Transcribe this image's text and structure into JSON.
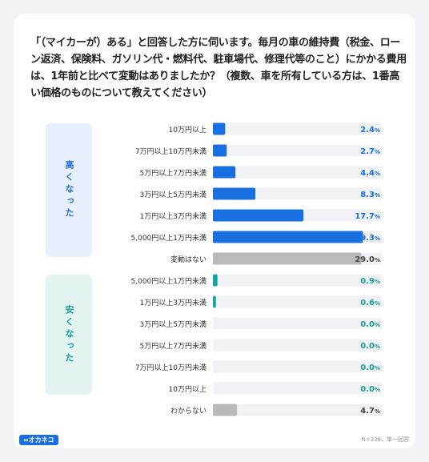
{
  "title": "「（マイカーが）ある」と回答した方に伺います。毎月の車の維持費（税金、ローン返済、保険料、ガソリン代・燃料代、駐車場代、修理代等のこと）にかかる費用は、1年前と比べて変動はありましたか？（複数、車を所有している方は、1番高い価格のものについて教えてください）",
  "groups": {
    "up": "高くなった",
    "down": "安くなった"
  },
  "logo": "∞オカネコ",
  "note": "N=338、単一回答",
  "colors": {
    "up": "#1a6fe0",
    "neutral": "#b9b9b9",
    "down": "#1aa5a0",
    "track": "#f1f2f5"
  },
  "chart_data": {
    "type": "bar",
    "orientation": "horizontal",
    "unit": "%",
    "xlim": [
      0,
      33
    ],
    "categories": [
      "10万円以上",
      "7万円以上10万円未満",
      "5万円以上7万円未満",
      "3万円以上5万円未満",
      "1万円以上3万円未満",
      "5,000円以上1万円未満",
      "変動はない",
      "5,000円以上1万円未満",
      "1万円以上3万円未満",
      "3万円以上5万円未満",
      "5万円以上7万円未満",
      "7万円以上10万円未満",
      "10万円以上",
      "わからない"
    ],
    "values": [
      2.4,
      2.7,
      4.4,
      8.3,
      17.7,
      29.3,
      29.0,
      0.9,
      0.6,
      0.0,
      0.0,
      0.0,
      0.0,
      4.7
    ],
    "labels": [
      "2.4",
      "2.7",
      "4.4",
      "8.3",
      "17.7",
      "29.3",
      "29.0",
      "0.9",
      "0.6",
      "0.0",
      "0.0",
      "0.0",
      "0.0",
      "4.7"
    ],
    "kind": [
      "up",
      "up",
      "up",
      "up",
      "up",
      "up",
      "neutral",
      "down",
      "down",
      "down",
      "down",
      "down",
      "down",
      "neutral"
    ]
  }
}
